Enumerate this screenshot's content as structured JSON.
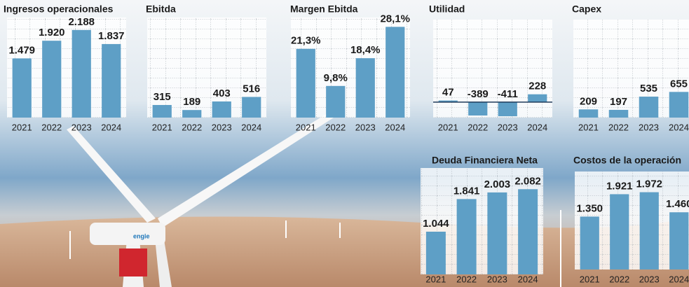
{
  "chart_data": [
    {
      "type": "bar",
      "title": "Ingresos operacionales",
      "categories": [
        "2021",
        "2022",
        "2023",
        "2024"
      ],
      "values": [
        1479,
        1920,
        2188,
        1837
      ],
      "value_labels": [
        "1.479",
        "1.920",
        "2.188",
        "1.837"
      ],
      "color": "#5e9fc6",
      "ylim": [
        0,
        2500
      ]
    },
    {
      "type": "bar",
      "title": "Ebitda",
      "categories": [
        "2021",
        "2022",
        "2023",
        "2024"
      ],
      "values": [
        315,
        189,
        403,
        516
      ],
      "color": "#5e9fc6",
      "ylim": [
        0,
        2500
      ]
    },
    {
      "type": "bar",
      "title": "Margen Ebitda",
      "categories": [
        "2021",
        "2022",
        "2023",
        "2024"
      ],
      "values": [
        21.3,
        9.8,
        18.4,
        28.1
      ],
      "value_labels": [
        "21,3%",
        "9,8%",
        "18,4%",
        "28,1%"
      ],
      "color": "#5e9fc6",
      "ylim": [
        0,
        31
      ]
    },
    {
      "type": "bar",
      "title": "Utilidad",
      "categories": [
        "2021",
        "2022",
        "2023",
        "2024"
      ],
      "values": [
        47,
        -389,
        -411,
        228
      ],
      "color": "#5e9fc6",
      "ylim": [
        -450,
        2400
      ]
    },
    {
      "type": "bar",
      "title": "Capex",
      "categories": [
        "2021",
        "2022",
        "2023",
        "2024"
      ],
      "values": [
        209,
        197,
        535,
        655
      ],
      "color": "#5e9fc6",
      "ylim": [
        0,
        2500
      ]
    },
    {
      "type": "bar",
      "title": "Deuda Financiera Neta",
      "categories": [
        "2021",
        "2022",
        "2023",
        "2024"
      ],
      "values": [
        1044,
        1841,
        2003,
        2082
      ],
      "value_labels": [
        "1.044",
        "1.841",
        "2.003",
        "2.082"
      ],
      "color": "#5e9fc6",
      "ylim": [
        0,
        2600
      ]
    },
    {
      "type": "bar",
      "title": "Costos de la operación",
      "categories": [
        "2021",
        "2022",
        "2023",
        "2024"
      ],
      "values": [
        1350,
        1921,
        1972,
        1460
      ],
      "value_labels": [
        "1.350",
        "1.921",
        "1.972",
        "1.460"
      ],
      "color": "#5e9fc6",
      "ylim": [
        0,
        2500
      ]
    }
  ]
}
